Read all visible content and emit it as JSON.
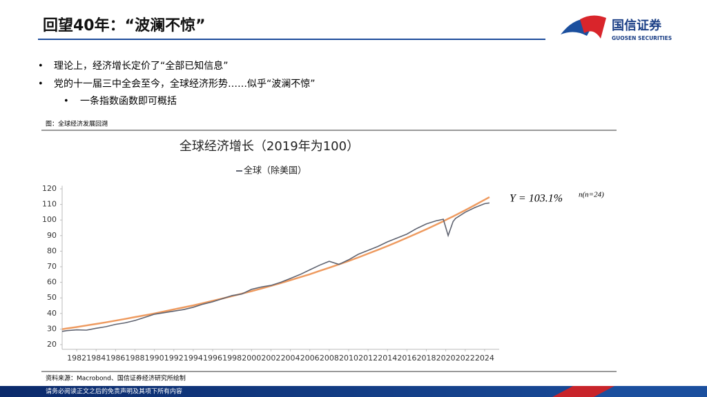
{
  "header": {
    "title": "回望40年：“波澜不惊”",
    "logo_cn": "国信证券",
    "logo_en": "GUOSEN SECURITIES"
  },
  "bullets": [
    "理论上，经济增长定价了“全部已知信息”",
    "党的十一届三中全会至今，全球经济形势……似乎“波澜不惊”",
    "一条指数函数即可概括"
  ],
  "caption": "图：全球经济发展回溯",
  "source": "资料来源：Macrobond、国信证券经济研究所绘制",
  "footer": "请务必阅读正文之后的免责声明及其项下所有内容",
  "chart_data": {
    "type": "line",
    "title": "全球经济增长（2019年为100）",
    "annotation": "Y = 103.1%",
    "annotation_sup": "n(n=24)",
    "x": [
      1980.5,
      1981,
      1982,
      1983,
      1984,
      1985,
      1986,
      1987,
      1988,
      1989,
      1990,
      1991,
      1992,
      1993,
      1994,
      1995,
      1996,
      1997,
      1998,
      1999,
      2000,
      2001,
      2002,
      2003,
      2004,
      2005,
      2006,
      2007,
      2008,
      2009,
      2010,
      2011,
      2012,
      2013,
      2014,
      2015,
      2016,
      2017,
      2018,
      2019,
      2019.75,
      2020.25,
      2020.75,
      2021,
      2022,
      2023,
      2024,
      2024.5
    ],
    "series": [
      {
        "name": "全球（除美国）",
        "color": "#5f6370",
        "values": [
          28.5,
          29,
          29.5,
          29.3,
          30.5,
          31.5,
          33,
          34,
          35.5,
          37.5,
          39.5,
          40.5,
          41.5,
          42.5,
          44,
          46,
          47.5,
          49.5,
          51.5,
          52.5,
          55.5,
          57,
          58,
          60,
          62.5,
          65,
          68,
          71,
          73.5,
          71.5,
          74.5,
          78,
          80.5,
          83,
          86,
          88.5,
          91,
          94.5,
          97.5,
          99.5,
          100.5,
          90,
          99,
          101,
          105,
          108,
          110.5,
          111
        ]
      },
      {
        "color": "#ee9a5f",
        "values": [
          29.9,
          30.4,
          31.3,
          32.3,
          33.3,
          34.3,
          35.4,
          36.5,
          37.7,
          38.8,
          40.0,
          41.3,
          42.6,
          43.9,
          45.2,
          46.6,
          48.1,
          49.6,
          51.1,
          52.7,
          54.3,
          56.0,
          57.7,
          59.5,
          61.4,
          63.3,
          65.2,
          67.3,
          69.4,
          71.5,
          73.7,
          76.0,
          78.4,
          80.8,
          83.3,
          85.9,
          88.6,
          91.3,
          94.1,
          97.0,
          99.2,
          100.8,
          102.3,
          103.1,
          106.3,
          109.6,
          113.0,
          114.7
        ]
      }
    ],
    "xlim": [
      1980.5,
      2025.5
    ],
    "xticks": [
      1982,
      1984,
      1986,
      1988,
      1990,
      1992,
      1994,
      1996,
      1998,
      2000,
      2002,
      2004,
      2006,
      2008,
      2010,
      2012,
      2014,
      2016,
      2018,
      2020,
      2022,
      2024
    ],
    "ylim": [
      17,
      122
    ],
    "yticks": [
      20,
      30,
      40,
      50,
      60,
      70,
      80,
      90,
      100,
      110,
      120
    ],
    "grid": false
  }
}
